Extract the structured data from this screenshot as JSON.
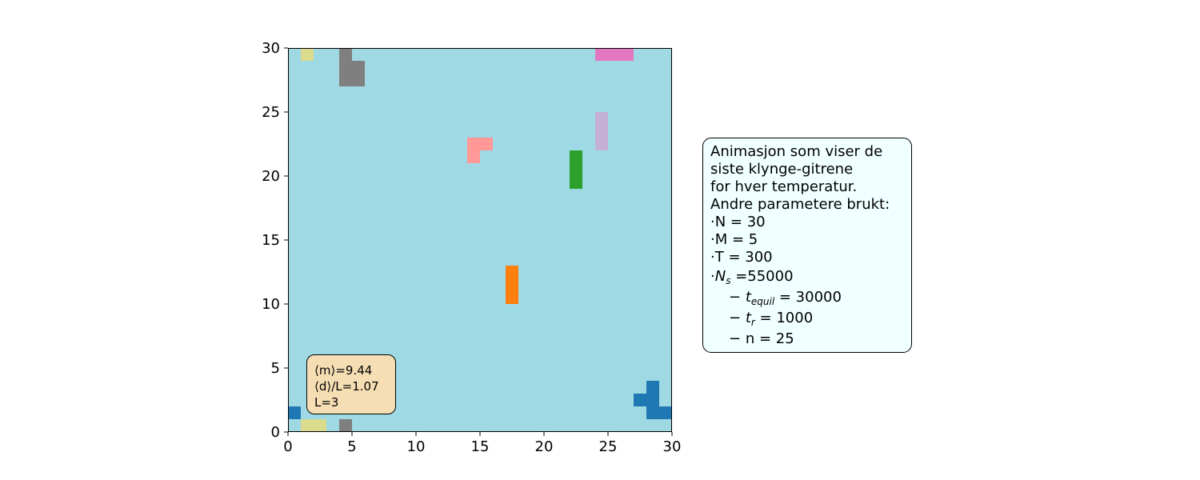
{
  "chart_data": {
    "type": "heatmap",
    "title": "",
    "xlabel": "",
    "ylabel": "",
    "xlim": [
      0,
      30
    ],
    "ylim": [
      0,
      30
    ],
    "xticks": [
      "0",
      "5",
      "10",
      "15",
      "20",
      "25",
      "30"
    ],
    "yticks": [
      "0",
      "5",
      "10",
      "15",
      "20",
      "25",
      "30"
    ],
    "grid": false,
    "background_color": "#9fd9e3",
    "clusters": [
      {
        "color": "#1f77b4",
        "cells": [
          [
            0,
            1
          ],
          [
            27,
            2
          ],
          [
            28,
            2
          ],
          [
            28,
            3
          ],
          [
            28,
            1
          ],
          [
            29,
            1
          ]
        ]
      },
      {
        "color": "#dbdb8d",
        "cells": [
          [
            1,
            29
          ],
          [
            1,
            0
          ],
          [
            2,
            0
          ]
        ]
      },
      {
        "color": "#7f7f7f",
        "cells": [
          [
            4,
            29
          ],
          [
            4,
            28
          ],
          [
            5,
            28
          ],
          [
            4,
            27
          ],
          [
            5,
            27
          ],
          [
            4,
            0
          ]
        ]
      },
      {
        "color": "#e377c2",
        "cells": [
          [
            24,
            29
          ],
          [
            25,
            29
          ],
          [
            26,
            29
          ]
        ]
      },
      {
        "color": "#c5b0d5",
        "cells": [
          [
            24,
            24
          ],
          [
            24,
            23
          ],
          [
            24,
            22
          ]
        ]
      },
      {
        "color": "#ff9896",
        "cells": [
          [
            14,
            22
          ],
          [
            15,
            22
          ],
          [
            14,
            21
          ]
        ]
      },
      {
        "color": "#2ca02c",
        "cells": [
          [
            22,
            21
          ],
          [
            22,
            20
          ],
          [
            22,
            19
          ]
        ]
      },
      {
        "color": "#ff7f0e",
        "cells": [
          [
            17,
            12
          ],
          [
            17,
            11
          ],
          [
            17,
            10
          ]
        ]
      }
    ]
  },
  "stats_box": {
    "m_label": "⟨m⟩",
    "m_value": "=9.44",
    "d_label": "⟨d⟩",
    "d_value": "/L=1.07",
    "L_text": "L=3"
  },
  "info_box": {
    "line1": "Animasjon som viser de",
    "line2": "siste klynge-gitrene",
    "line3": "for hver temperatur.",
    "line4": "Andre parametere brukt:",
    "line5": "·N = 30",
    "line6": "·M = 5",
    "line7": "·T = 300",
    "ns_prefix": "·",
    "ns_symbol": "N",
    "ns_sub": "s",
    "ns_value": " =55000",
    "dash": "− ",
    "tequil_symbol": "t",
    "tequil_sub": "equil",
    "tequil_value": " = 30000",
    "tr_symbol": "t",
    "tr_sub": "r",
    "tr_value": " = 1000",
    "n_line": "n = 25"
  }
}
